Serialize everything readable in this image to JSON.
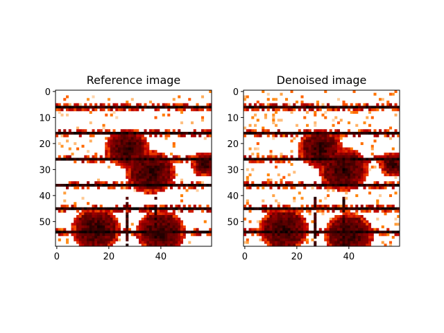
{
  "figure": {
    "panels": [
      {
        "title": "Reference image"
      },
      {
        "title": "Denoised image"
      }
    ]
  },
  "chart_data": [
    {
      "type": "heatmap",
      "title": "Reference image",
      "xlabel": "",
      "ylabel": "",
      "image_size": [
        60,
        60
      ],
      "xlim": [
        -0.5,
        59.5
      ],
      "ylim": [
        59.5,
        -0.5
      ],
      "xticks": [
        0,
        20,
        40
      ],
      "yticks": [
        0,
        10,
        20,
        30,
        40,
        50
      ],
      "colormap": "gist_heat_r",
      "grid": false,
      "content": {
        "dark_rows": [
          6,
          16,
          26,
          36,
          45,
          54
        ],
        "dark_cols": [
          27,
          38
        ],
        "blobs": [
          {
            "cx": 27,
            "cy": 22,
            "r": 7
          },
          {
            "cx": 36,
            "cy": 31,
            "r": 8
          },
          {
            "cx": 57,
            "cy": 28,
            "r": 4
          },
          {
            "cx": 15,
            "cy": 53,
            "r": 8
          },
          {
            "cx": 40,
            "cy": 54,
            "r": 8
          }
        ],
        "noise": 0.15
      }
    },
    {
      "type": "heatmap",
      "title": "Denoised image",
      "xlabel": "",
      "ylabel": "",
      "image_size": [
        60,
        60
      ],
      "xlim": [
        -0.5,
        59.5
      ],
      "ylim": [
        59.5,
        -0.5
      ],
      "xticks": [
        0,
        20,
        40
      ],
      "yticks": [
        0,
        10,
        20,
        30,
        40,
        50
      ],
      "colormap": "gist_heat_r",
      "grid": false,
      "content": {
        "dark_rows": [
          6,
          16,
          26,
          36,
          45,
          54
        ],
        "dark_cols": [
          27,
          38
        ],
        "blobs": [
          {
            "cx": 29,
            "cy": 22,
            "r": 7
          },
          {
            "cx": 38,
            "cy": 30,
            "r": 8
          },
          {
            "cx": 57,
            "cy": 28,
            "r": 4
          },
          {
            "cx": 15,
            "cy": 53,
            "r": 8
          },
          {
            "cx": 40,
            "cy": 55,
            "r": 8
          }
        ],
        "noise": 0.35
      }
    }
  ]
}
